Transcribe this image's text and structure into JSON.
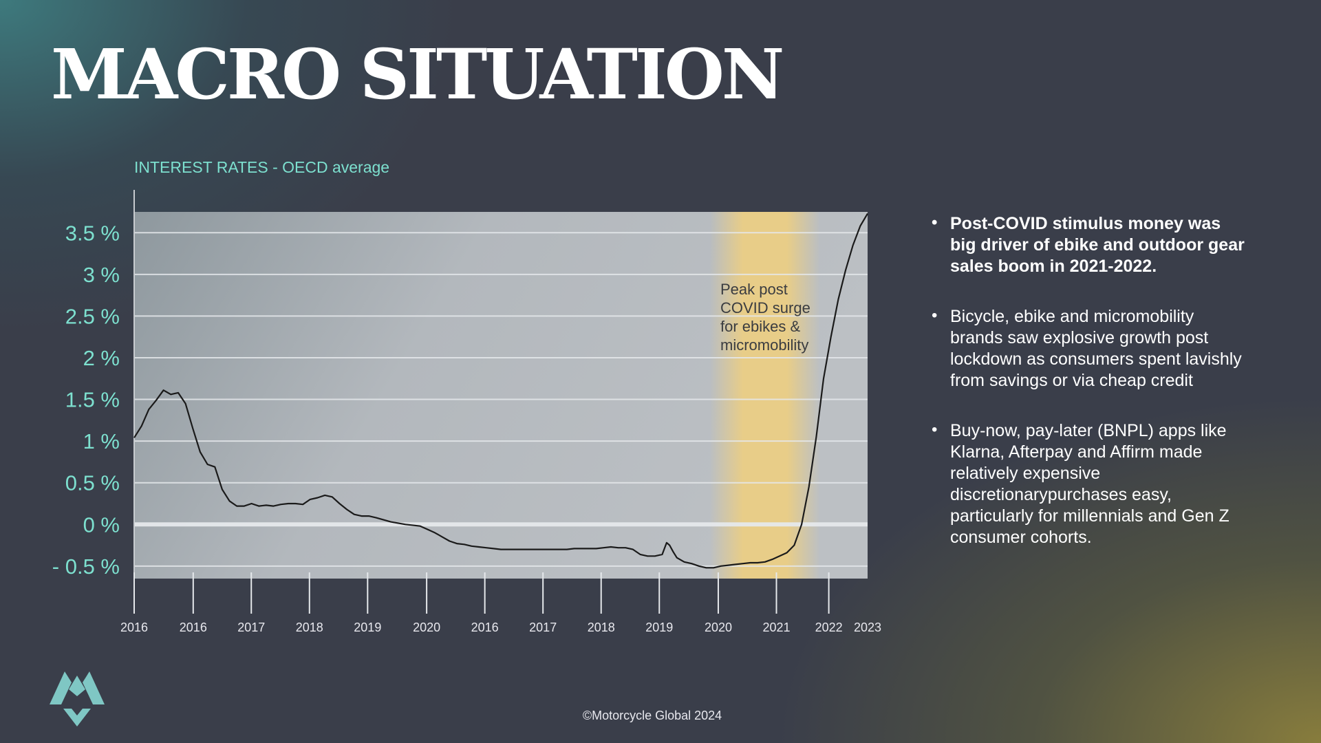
{
  "page": {
    "title": "MACRO SITUATION",
    "copyright": "©Motorcycle Global 2024"
  },
  "bullets": [
    "Post-COVID stimulus money was big driver of ebike and outdoor gear sales boom in 2021-2022.",
    "Bicycle, ebike and micromobility brands saw explosive growth post lockdown as consumers spent lavishly from savings or via cheap credit",
    "Buy-now, pay-later (BNPL) apps like Klarna, Afterpay and Affirm made relatively expensive discretionarypurchases easy, particularly for millennials and Gen Z consumer cohorts."
  ],
  "colors": {
    "accent": "#7de0cf",
    "highlight": "#e8cd88",
    "line": "#1a1a1a",
    "plot_bg": "#aeb4ba"
  },
  "icons": {
    "logo": "mg-logo-icon"
  },
  "chart_data": {
    "type": "line",
    "title": "INTEREST RATES  -  OECD average",
    "xlabel": "",
    "ylabel": "",
    "ylim": [
      -0.65,
      3.75
    ],
    "xlim": [
      0,
      100
    ],
    "y_ticks": [
      3.5,
      3,
      2.5,
      2,
      1.5,
      1,
      0.5,
      0,
      -0.5
    ],
    "y_tick_labels": [
      "3.5 %",
      "3 %",
      "2.5 %",
      "2 %",
      "1.5 %",
      "1 %",
      "0.5 %",
      "0 %",
      "- 0.5 %"
    ],
    "x_ticks": [
      0,
      8.05,
      15.97,
      23.9,
      31.83,
      39.88,
      47.81,
      55.74,
      63.67,
      71.6,
      79.64,
      87.57,
      94.71,
      100
    ],
    "x_tick_labels": [
      "2016",
      "2016",
      "2017",
      "2018",
      "2019",
      "2020",
      "2016",
      "2017",
      "2018",
      "2019",
      "2020",
      "2021",
      "2022",
      "2023"
    ],
    "highlight_band": {
      "from": 78.5,
      "to": 93.5,
      "label": [
        "Peak post",
        "COVID surge",
        "for ebikes &",
        "micromobility"
      ]
    },
    "series": [
      {
        "x": [
          0,
          1,
          2,
          3,
          4,
          5,
          6,
          7,
          8,
          9,
          10,
          11,
          12,
          13,
          14,
          15,
          16,
          17,
          18,
          19,
          20,
          21,
          22,
          23,
          24,
          25,
          26,
          27,
          28,
          29,
          30,
          31,
          32,
          33,
          35,
          37,
          39,
          40,
          41,
          42,
          43,
          44,
          45,
          46,
          47,
          48,
          49,
          50,
          51,
          52,
          53,
          54,
          55,
          56,
          57,
          58,
          59,
          60,
          61,
          62,
          63,
          64,
          65,
          66,
          67,
          68,
          69,
          70,
          71,
          72,
          72.6,
          73,
          73.5,
          74,
          75,
          76,
          77,
          78,
          79,
          80,
          81,
          82,
          83,
          84,
          85,
          86,
          87,
          88,
          89,
          90,
          91,
          92,
          93,
          94,
          95,
          96,
          97,
          98,
          99,
          100
        ],
        "values": [
          1.04,
          1.18,
          1.38,
          1.49,
          1.61,
          1.56,
          1.58,
          1.45,
          1.15,
          0.87,
          0.72,
          0.69,
          0.42,
          0.28,
          0.22,
          0.22,
          0.25,
          0.22,
          0.23,
          0.22,
          0.24,
          0.25,
          0.25,
          0.24,
          0.3,
          0.32,
          0.35,
          0.33,
          0.25,
          0.18,
          0.12,
          0.1,
          0.1,
          0.08,
          0.03,
          0.0,
          -0.02,
          -0.06,
          -0.1,
          -0.15,
          -0.2,
          -0.23,
          -0.24,
          -0.26,
          -0.27,
          -0.28,
          -0.29,
          -0.3,
          -0.3,
          -0.3,
          -0.3,
          -0.3,
          -0.3,
          -0.3,
          -0.3,
          -0.3,
          -0.3,
          -0.29,
          -0.29,
          -0.29,
          -0.29,
          -0.28,
          -0.27,
          -0.28,
          -0.28,
          -0.3,
          -0.36,
          -0.38,
          -0.38,
          -0.36,
          -0.22,
          -0.25,
          -0.33,
          -0.4,
          -0.45,
          -0.47,
          -0.5,
          -0.52,
          -0.52,
          -0.5,
          -0.49,
          -0.48,
          -0.47,
          -0.46,
          -0.46,
          -0.45,
          -0.42,
          -0.38,
          -0.34,
          -0.25,
          0.0,
          0.45,
          1.05,
          1.75,
          2.25,
          2.7,
          3.05,
          3.35,
          3.58,
          3.73
        ]
      }
    ]
  }
}
